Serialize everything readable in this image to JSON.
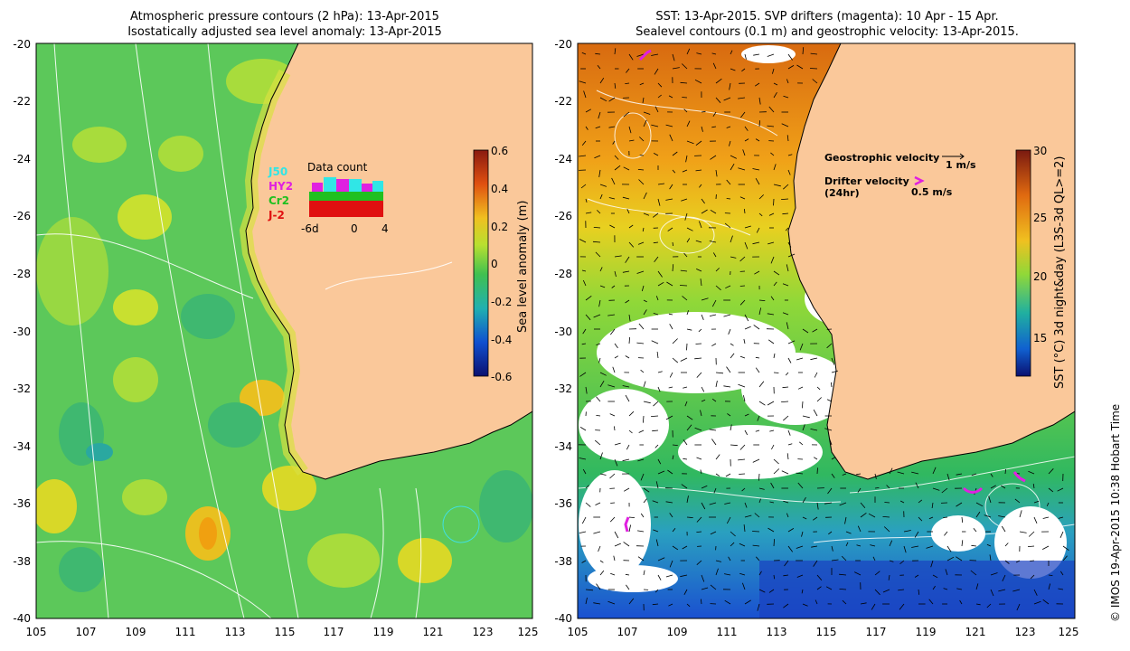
{
  "left_panel": {
    "title_line1": "Atmospheric pressure contours (2 hPa): 13-Apr-2015",
    "title_line2": "Isostatically adjusted sea level anomaly: 13-Apr-2015",
    "colorbar_label": "Sea level anomaly (m)",
    "colorbar_ticks": [
      "0.6",
      "0.4",
      "0.2",
      "0",
      "-0.2",
      "-0.4",
      "-0.6"
    ],
    "inset": {
      "title": "Data count",
      "satellites": [
        "J50",
        "HY2",
        "Cr2",
        "J-2"
      ],
      "satellite_colors": [
        "#30e6e6",
        "#e020e0",
        "#20c020",
        "#e01010"
      ],
      "x_labels": [
        "-6d",
        "0",
        "4"
      ]
    }
  },
  "right_panel": {
    "title_line1": "SST: 13-Apr-2015. SVP drifters (magenta): 10 Apr - 15 Apr.",
    "title_line2": "Sealevel contours (0.1 m) and geostrophic velocity: 13-Apr-2015.",
    "colorbar_label": "SST (°C) 3d night&day (L3S-3d QL>=2)",
    "colorbar_ticks": [
      "30",
      "25",
      "20",
      "15"
    ],
    "legend_geostrophic": "Geostrophic velocity",
    "legend_geostrophic_scale": "1 m/s",
    "legend_drifter_line1": "Drifter velocity",
    "legend_drifter_line2": "(24hr)",
    "legend_drifter_scale": "0.5 m/s"
  },
  "axes": {
    "lat_labels": [
      "-20",
      "-22",
      "-24",
      "-26",
      "-28",
      "-30",
      "-32",
      "-34",
      "-36",
      "-38",
      "-40"
    ],
    "lon_labels": [
      "105",
      "107",
      "109",
      "111",
      "113",
      "115",
      "117",
      "119",
      "121",
      "123",
      "125"
    ]
  },
  "copyright": "© IMOS 19-Apr-2015 10:38 Hobart Time",
  "colors": {
    "land": "#fac89a",
    "sla_mid": "#5cc85a",
    "sst_warm": "#e07a10",
    "sst_mid": "#7fd040",
    "sst_cool": "#2f8fe0"
  }
}
